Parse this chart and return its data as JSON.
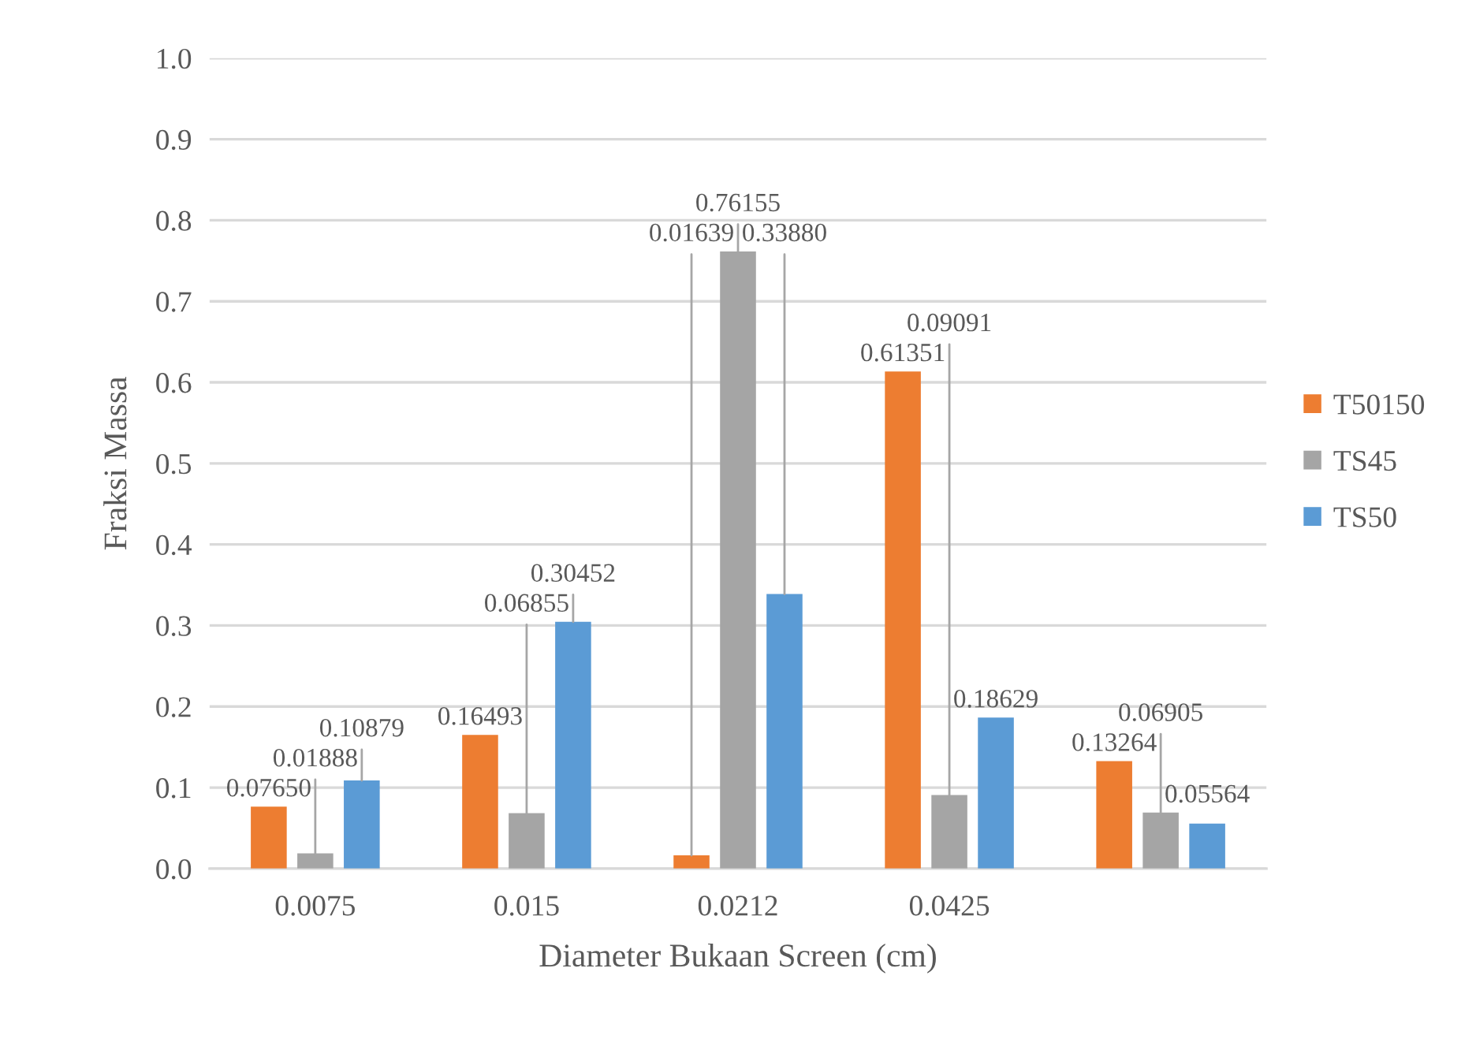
{
  "chart_data": {
    "type": "bar",
    "xlabel": "Diameter Bukaan Screen (cm)",
    "ylabel": "Fraksi Massa",
    "categories": [
      "0.0075",
      "0.015",
      "0.0212",
      "0.0425",
      null
    ],
    "series": [
      {
        "name": "T50150",
        "color": "#ed7d31",
        "values": [
          0.0765,
          0.16493,
          0.01639,
          0.61351,
          0.13264
        ],
        "value_labels": [
          "0.07650",
          "0.16493",
          "0.01639",
          "0.61351",
          "0.13264"
        ]
      },
      {
        "name": "TS45",
        "color": "#a5a5a5",
        "values": [
          0.01888,
          0.06855,
          0.76155,
          0.09091,
          0.06905
        ],
        "value_labels": [
          "0.01888",
          "0.06855",
          "0.76155",
          "0.09091",
          "0.06905"
        ]
      },
      {
        "name": "TS50",
        "color": "#5b9bd5",
        "values": [
          0.10879,
          0.30452,
          0.3388,
          0.18629,
          0.05564
        ],
        "value_labels": [
          "0.10879",
          "0.30452",
          "0.33880",
          "0.18629",
          "0.05564"
        ]
      }
    ],
    "ylim": [
      0,
      1
    ],
    "yticks": [
      {
        "value": 0,
        "label": "0.0"
      },
      {
        "value": 0.1,
        "label": "0.1"
      },
      {
        "value": 0.2,
        "label": "0.2"
      },
      {
        "value": 0.3,
        "label": "0.3"
      },
      {
        "value": 0.4,
        "label": "0.4"
      },
      {
        "value": 0.5,
        "label": "0.5"
      },
      {
        "value": 0.6,
        "label": "0.6"
      },
      {
        "value": 0.7,
        "label": "0.7"
      },
      {
        "value": 0.8,
        "label": "0.8"
      },
      {
        "value": 0.9,
        "label": "0.9"
      },
      {
        "value": 1,
        "label": "1.0"
      }
    ],
    "grid": "y",
    "legend": "right"
  }
}
